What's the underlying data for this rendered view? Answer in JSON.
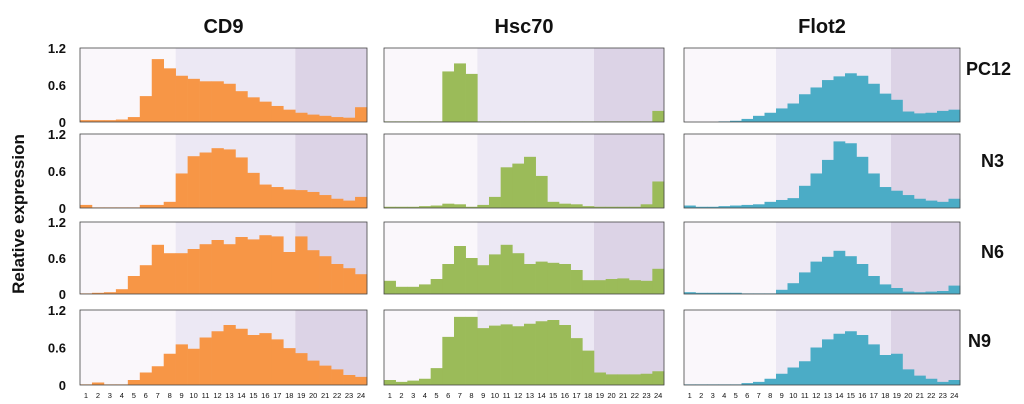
{
  "chart_data": {
    "type": "bar",
    "ylabel": "Relative expression",
    "ylim": [
      0,
      1.2
    ],
    "yticks": [
      "0",
      "0.6",
      "1.2"
    ],
    "x": [
      "1",
      "2",
      "3",
      "4",
      "5",
      "6",
      "7",
      "8",
      "9",
      "10",
      "11",
      "12",
      "13",
      "14",
      "15",
      "16",
      "17",
      "18",
      "19",
      "20",
      "21",
      "22",
      "23",
      "24"
    ],
    "columns": [
      {
        "name": "CD9",
        "color": "#f79646"
      },
      {
        "name": "Hsc70",
        "color": "#9bbb59"
      },
      {
        "name": "Flot2",
        "color": "#4bacc6"
      }
    ],
    "rows": [
      "PC12",
      "N3",
      "N6",
      "N9"
    ],
    "shading": [
      {
        "from": 1,
        "to": 8,
        "color": "#faf7fb"
      },
      {
        "from": 9,
        "to": 18,
        "color": "#ece8f4"
      },
      {
        "from": 19,
        "to": 24,
        "color": "#dcd3e6"
      }
    ],
    "panels": [
      [
        [
          0.03,
          0.03,
          0.03,
          0.04,
          0.08,
          0.42,
          1.02,
          0.87,
          0.75,
          0.7,
          0.66,
          0.66,
          0.62,
          0.5,
          0.4,
          0.33,
          0.26,
          0.2,
          0.15,
          0.12,
          0.1,
          0.08,
          0.07,
          0.24
        ],
        [
          0.01,
          0.01,
          0.01,
          0.01,
          0.01,
          0.82,
          0.95,
          0.78,
          0.01,
          0.01,
          0.01,
          0.01,
          0.01,
          0.01,
          0.01,
          0.01,
          0.01,
          0.01,
          0.01,
          0.01,
          0.01,
          0.01,
          0.01,
          0.18
        ],
        [
          0.0,
          0.0,
          0.0,
          0.01,
          0.02,
          0.05,
          0.1,
          0.15,
          0.22,
          0.3,
          0.45,
          0.56,
          0.68,
          0.74,
          0.79,
          0.75,
          0.62,
          0.46,
          0.36,
          0.17,
          0.14,
          0.15,
          0.18,
          0.2
        ]
      ],
      [
        [
          0.05,
          0.01,
          0.01,
          0.01,
          0.01,
          0.05,
          0.05,
          0.1,
          0.56,
          0.84,
          0.9,
          0.97,
          0.95,
          0.82,
          0.57,
          0.38,
          0.34,
          0.3,
          0.29,
          0.26,
          0.21,
          0.15,
          0.12,
          0.18
        ],
        [
          0.02,
          0.02,
          0.02,
          0.03,
          0.04,
          0.07,
          0.06,
          0.02,
          0.05,
          0.18,
          0.66,
          0.72,
          0.83,
          0.52,
          0.1,
          0.07,
          0.06,
          0.03,
          0.02,
          0.02,
          0.02,
          0.02,
          0.06,
          0.43
        ],
        [
          0.04,
          0.02,
          0.02,
          0.03,
          0.04,
          0.05,
          0.06,
          0.1,
          0.13,
          0.16,
          0.36,
          0.56,
          0.78,
          1.08,
          1.05,
          0.83,
          0.56,
          0.34,
          0.28,
          0.21,
          0.15,
          0.12,
          0.1,
          0.15
        ]
      ],
      [
        [
          0.01,
          0.02,
          0.03,
          0.08,
          0.3,
          0.48,
          0.82,
          0.68,
          0.68,
          0.75,
          0.83,
          0.9,
          0.83,
          0.95,
          0.91,
          0.98,
          0.96,
          0.7,
          0.96,
          0.73,
          0.63,
          0.5,
          0.43,
          0.33
        ],
        [
          0.22,
          0.12,
          0.12,
          0.16,
          0.25,
          0.5,
          0.8,
          0.6,
          0.48,
          0.66,
          0.82,
          0.68,
          0.5,
          0.54,
          0.52,
          0.5,
          0.4,
          0.23,
          0.23,
          0.25,
          0.26,
          0.23,
          0.22,
          0.42
        ],
        [
          0.03,
          0.02,
          0.02,
          0.02,
          0.02,
          0.01,
          0.01,
          0.01,
          0.07,
          0.18,
          0.36,
          0.54,
          0.62,
          0.72,
          0.63,
          0.5,
          0.3,
          0.16,
          0.1,
          0.04,
          0.03,
          0.04,
          0.05,
          0.14
        ]
      ],
      [
        [
          0.01,
          0.04,
          0.01,
          0.01,
          0.08,
          0.2,
          0.3,
          0.5,
          0.65,
          0.58,
          0.76,
          0.86,
          0.96,
          0.9,
          0.8,
          0.83,
          0.73,
          0.59,
          0.51,
          0.39,
          0.31,
          0.25,
          0.16,
          0.13
        ],
        [
          0.08,
          0.05,
          0.07,
          0.1,
          0.27,
          0.77,
          1.09,
          1.09,
          0.91,
          0.95,
          0.97,
          0.94,
          0.98,
          1.02,
          1.04,
          0.96,
          0.75,
          0.55,
          0.2,
          0.17,
          0.17,
          0.17,
          0.18,
          0.22
        ],
        [
          0.01,
          0.01,
          0.01,
          0.01,
          0.01,
          0.03,
          0.05,
          0.1,
          0.18,
          0.28,
          0.38,
          0.6,
          0.73,
          0.82,
          0.86,
          0.8,
          0.65,
          0.48,
          0.5,
          0.25,
          0.15,
          0.1,
          0.05,
          0.08
        ]
      ]
    ]
  }
}
